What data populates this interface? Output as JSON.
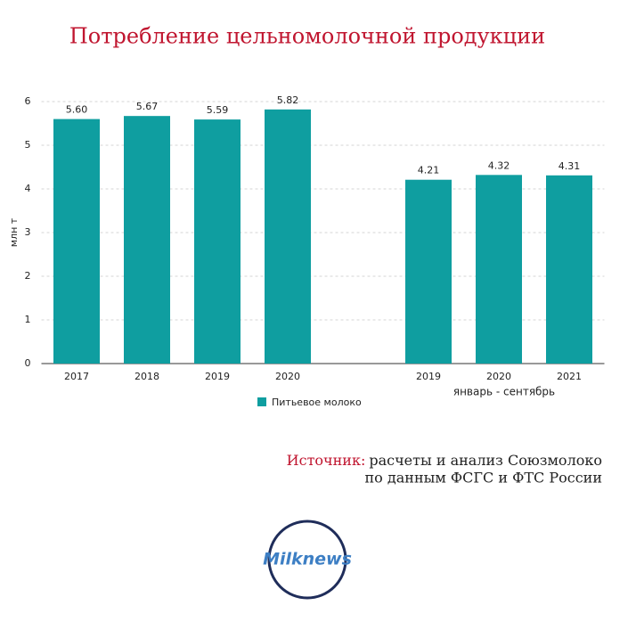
{
  "chart_data": {
    "type": "bar",
    "title": "Потребление цельномолочной продукции",
    "y_label": "млн т",
    "categories": [
      "2017",
      "2018",
      "2019",
      "2020",
      null,
      "2019",
      "2020",
      "2021"
    ],
    "values": [
      5.6,
      5.67,
      5.59,
      5.82,
      null,
      4.21,
      4.32,
      4.31
    ],
    "value_labels": [
      "5.60",
      "5.67",
      "5.59",
      "5.82",
      null,
      "4.21",
      "4.32",
      "4.31"
    ],
    "group_label": "январь - сентябрь",
    "series_name": "Питьевое молоко",
    "color": "#0f9ea0",
    "ylim": [
      0,
      6
    ],
    "yticks": [
      0,
      1,
      2,
      3,
      4,
      5,
      6
    ],
    "grid": true,
    "source": {
      "label": "Источник:",
      "lines": [
        "расчеты и анализ Союзмолоко",
        "по данным ФСГС и ФТС России"
      ]
    },
    "logo": "Milknews"
  }
}
